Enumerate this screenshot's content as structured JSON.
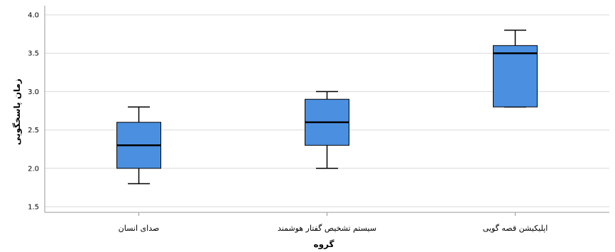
{
  "chart_data": {
    "type": "boxplot",
    "title": "",
    "xlabel": "گروه",
    "ylabel": "زمان پاسخگویی",
    "ylim": [
      1.4,
      4.05
    ],
    "yticks": [
      "1.5",
      "2.0",
      "2.5",
      "3.0",
      "3.5",
      "4.0"
    ],
    "grid": true,
    "categories": [
      "صدای انسان",
      "سیستم تشخیص گفتار هوشمند",
      "اپلیکیشن قصه گویی"
    ],
    "boxes": [
      {
        "min": 1.8,
        "q1": 2.0,
        "median": 2.3,
        "q3": 2.6,
        "max": 2.8
      },
      {
        "min": 2.0,
        "q1": 2.3,
        "median": 2.6,
        "q3": 2.9,
        "max": 3.0
      },
      {
        "min": 2.8,
        "q1": 2.8,
        "median": 3.5,
        "q3": 3.6,
        "max": 3.8
      }
    ],
    "box_color": "#4a8fe0",
    "grid_color": "#d9d9d9",
    "axis_color": "#999999"
  }
}
